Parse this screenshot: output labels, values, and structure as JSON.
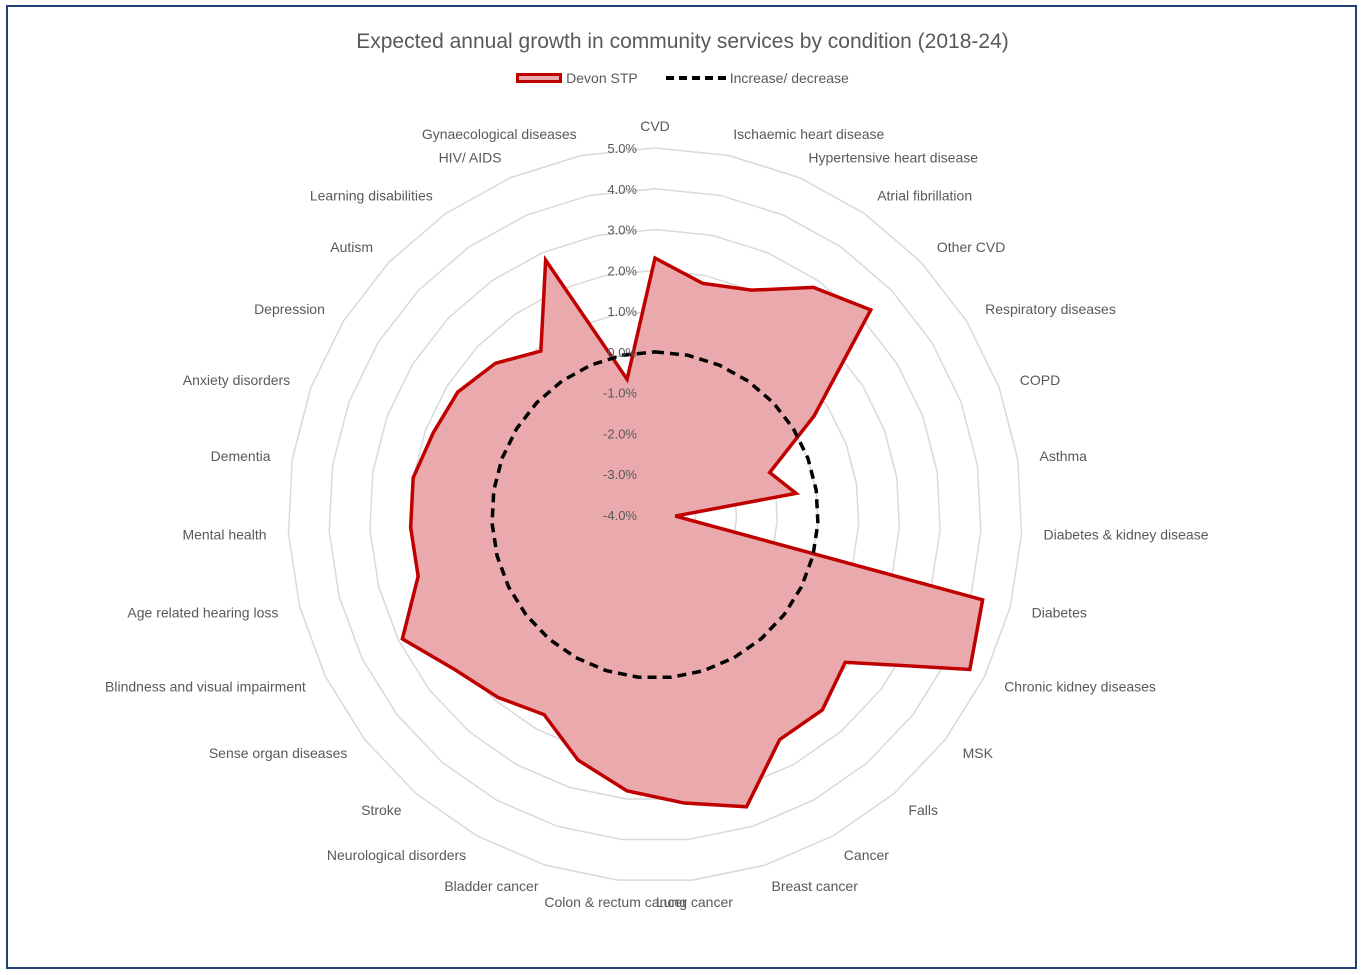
{
  "chart_data": {
    "type": "radar",
    "title": "Expected annual growth in community services by condition (2018-24)",
    "legend_position": "top",
    "r_ticks": [
      "-4.0%",
      "-3.0%",
      "-2.0%",
      "-1.0%",
      "0.0%",
      "1.0%",
      "2.0%",
      "3.0%",
      "4.0%",
      "5.0%"
    ],
    "r_range": [
      -4.0,
      5.0
    ],
    "grid": true,
    "categories": [
      "CVD",
      "Ischaemic heart disease",
      "Hypertensive heart disease",
      "Atrial fibrillation",
      "Other CVD",
      "Respiratory diseases",
      "COPD",
      "Asthma",
      "Diabetes & kidney disease",
      "Diabetes",
      "Chronic kidney diseases",
      "MSK",
      "Falls",
      "Cancer",
      "Breast cancer",
      "Lung cancer",
      "Colon & rectum cancer",
      "Bladder cancer",
      "Neurological disorders",
      "Stroke",
      "Sense organ diseases",
      "Blindness and visual impairment",
      "Age related hearing loss",
      "Mental health",
      "Dementia",
      "Anxiety disorders",
      "Depression",
      "Autism",
      "Learning disabilities",
      "HIV/ AIDS",
      "Gynaecological diseases"
    ],
    "series": [
      {
        "name": "Devon STP",
        "color": "#c00000",
        "fill": "#eaa9ac",
        "values": [
          2.3,
          1.8,
          2.0,
          2.8,
          3.3,
          0.6,
          -1.0,
          -0.5,
          -3.5,
          4.3,
          4.6,
          1.9,
          2.3,
          2.3,
          3.5,
          3.1,
          2.8,
          2.3,
          1.6,
          1.9,
          2.2,
          2.9,
          2.0,
          2.0,
          2.0,
          1.8,
          1.7,
          1.4,
          0.9,
          2.8,
          -0.6
        ]
      },
      {
        "name": "Increase/ decrease",
        "color": "#000000",
        "dashed": true,
        "values": [
          0.0,
          0.0,
          0.0,
          0.0,
          0.0,
          0.0,
          0.0,
          0.0,
          0.0,
          0.0,
          0.0,
          0.0,
          0.0,
          0.0,
          0.0,
          0.0,
          0.0,
          0.0,
          0.0,
          0.0,
          0.0,
          0.0,
          0.0,
          0.0,
          0.0,
          0.0,
          0.0,
          0.0,
          0.0,
          0.0,
          0.0
        ]
      }
    ]
  }
}
